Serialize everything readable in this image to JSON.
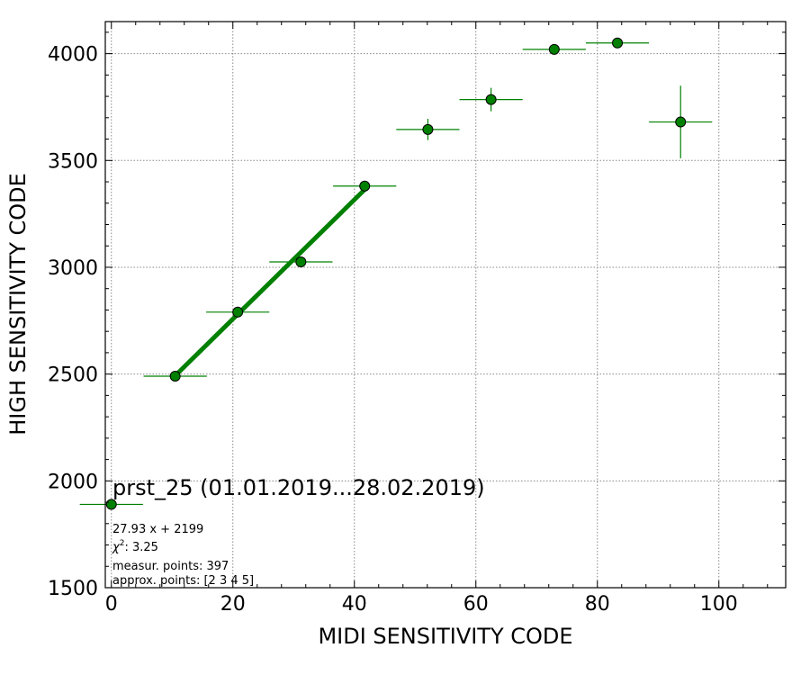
{
  "chart_data": {
    "type": "scatter",
    "title": "prst_25 (01.01.2019...28.02.2019)",
    "xlabel": "MIDI SENSITIVITY CODE",
    "ylabel": "HIGH SENSITIVITY CODE",
    "xlim": [
      -1,
      111
    ],
    "ylim": [
      1500,
      4150
    ],
    "xticks": [
      0,
      20,
      40,
      60,
      80,
      100
    ],
    "yticks": [
      1500,
      2000,
      2500,
      3000,
      3500,
      4000
    ],
    "grid": true,
    "marker_color": "#008000",
    "line_color": "#008000",
    "points": [
      {
        "x": 0,
        "y": 1890,
        "xerr": 5.2,
        "yerr": 0
      },
      {
        "x": 10.5,
        "y": 2490,
        "xerr": 5.2,
        "yerr": 0
      },
      {
        "x": 20.8,
        "y": 2790,
        "xerr": 5.2,
        "yerr": 0
      },
      {
        "x": 31.2,
        "y": 3025,
        "xerr": 5.2,
        "yerr": 0
      },
      {
        "x": 41.7,
        "y": 3380,
        "xerr": 5.2,
        "yerr": 0
      },
      {
        "x": 52.1,
        "y": 3645,
        "xerr": 5.2,
        "yerr": 50
      },
      {
        "x": 62.5,
        "y": 3785,
        "xerr": 5.2,
        "yerr": 55
      },
      {
        "x": 72.9,
        "y": 4020,
        "xerr": 5.2,
        "yerr": 0
      },
      {
        "x": 83.3,
        "y": 4050,
        "xerr": 5.2,
        "yerr": 15
      },
      {
        "x": 93.7,
        "y": 3680,
        "xerr": 5.2,
        "yerr": 170
      }
    ],
    "fit": {
      "slope": 27.93,
      "intercept": 2199,
      "x_range": [
        10.5,
        41.7
      ]
    },
    "annotations": {
      "fit_label": "27.93 x + 2199",
      "chi2_symbol": "χ",
      "chi2_sup": "2",
      "chi2_value": ": 3.25",
      "measured_points": "measur. points: 397",
      "approx_points": "approx. points: [2 3 4 5]"
    }
  }
}
